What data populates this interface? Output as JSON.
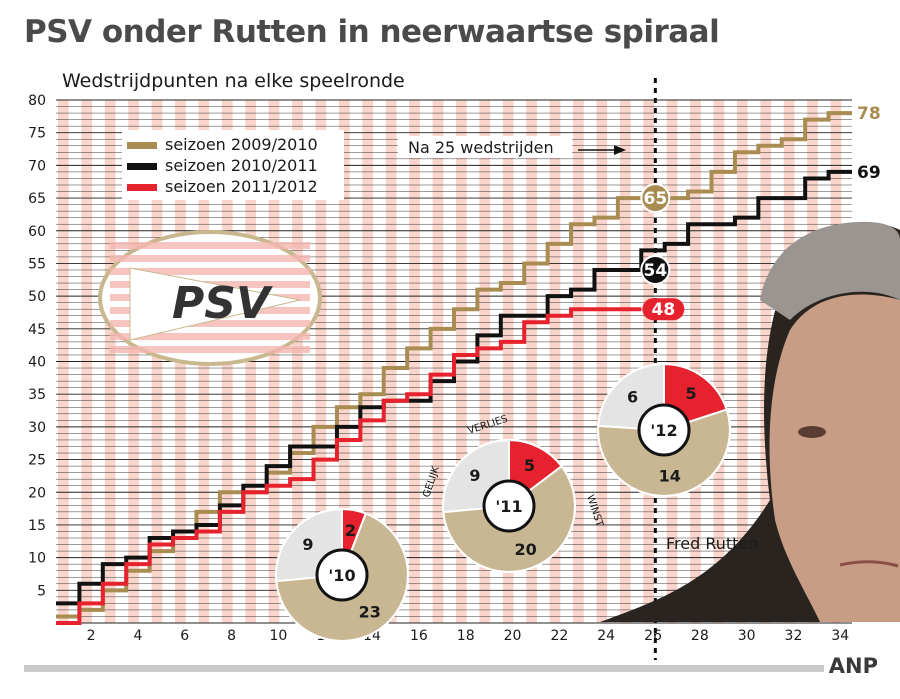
{
  "title": "PSV onder Rutten in neerwaartse spiraal",
  "source": "ANP",
  "colors": {
    "s2010": "#a88c52",
    "s2011": "#111111",
    "s2012": "#e5222d",
    "stripe": "#f9d5cb",
    "pie_win": "#c9b793",
    "pie_draw": "#e4e4e4",
    "pie_loss": "#e5222d"
  },
  "logo": {
    "text": "PSV"
  },
  "chart_data": {
    "type": "line",
    "title": "PSV onder Rutten in neerwaartse spiraal",
    "subtitle": "Wedstrijdpunten na elke speelronde",
    "ylim": [
      0,
      80
    ],
    "xlim": [
      0,
      34
    ],
    "yticks": [
      5,
      10,
      15,
      20,
      25,
      30,
      35,
      40,
      45,
      50,
      55,
      60,
      65,
      70,
      75,
      80
    ],
    "xticks": [
      2,
      4,
      6,
      8,
      10,
      12,
      14,
      16,
      18,
      20,
      22,
      24,
      26,
      28,
      30,
      32,
      34
    ],
    "grid": true,
    "legend_position": "top-left",
    "series": [
      {
        "key": "s2010",
        "name": "seizoen 2009/2010",
        "values": [
          1,
          2,
          5,
          8,
          11,
          14,
          17,
          20,
          20,
          23,
          26,
          30,
          33,
          35,
          39,
          42,
          45,
          48,
          51,
          52,
          55,
          58,
          61,
          62,
          65,
          65,
          65,
          66,
          69,
          72,
          73,
          74,
          77,
          78
        ],
        "end_label": "78"
      },
      {
        "key": "s2011",
        "name": "seizoen 2010/2011",
        "values": [
          3,
          6,
          9,
          10,
          13,
          14,
          15,
          18,
          21,
          24,
          27,
          27,
          30,
          33,
          34,
          34,
          37,
          40,
          44,
          47,
          47,
          50,
          51,
          54,
          54,
          57,
          58,
          61,
          61,
          62,
          65,
          65,
          68,
          69
        ],
        "end_label": "69"
      },
      {
        "key": "s2012",
        "name": "seizoen 2011/2012",
        "values": [
          0,
          3,
          6,
          9,
          12,
          13,
          14,
          17,
          20,
          21,
          22,
          25,
          28,
          31,
          34,
          35,
          38,
          41,
          42,
          43,
          46,
          47,
          48,
          48,
          48
        ],
        "end_label": "48"
      }
    ],
    "marker": {
      "x": 25.6,
      "label": "Na 25 wedstrijden",
      "points": [
        {
          "series": "s2010",
          "value": 65
        },
        {
          "series": "s2011",
          "value": 54
        },
        {
          "series": "s2012",
          "value": 48
        }
      ]
    },
    "pies": [
      {
        "label": "'10",
        "win": 23,
        "draw": 9,
        "loss": 2
      },
      {
        "label": "'11",
        "win": 20,
        "draw": 9,
        "loss": 5,
        "win_label": "WINST",
        "draw_label": "GELIJK",
        "loss_label": "VERLIES"
      },
      {
        "label": "'12",
        "win": 14,
        "draw": 6,
        "loss": 5
      }
    ],
    "annotation": "Fred Rutten"
  }
}
